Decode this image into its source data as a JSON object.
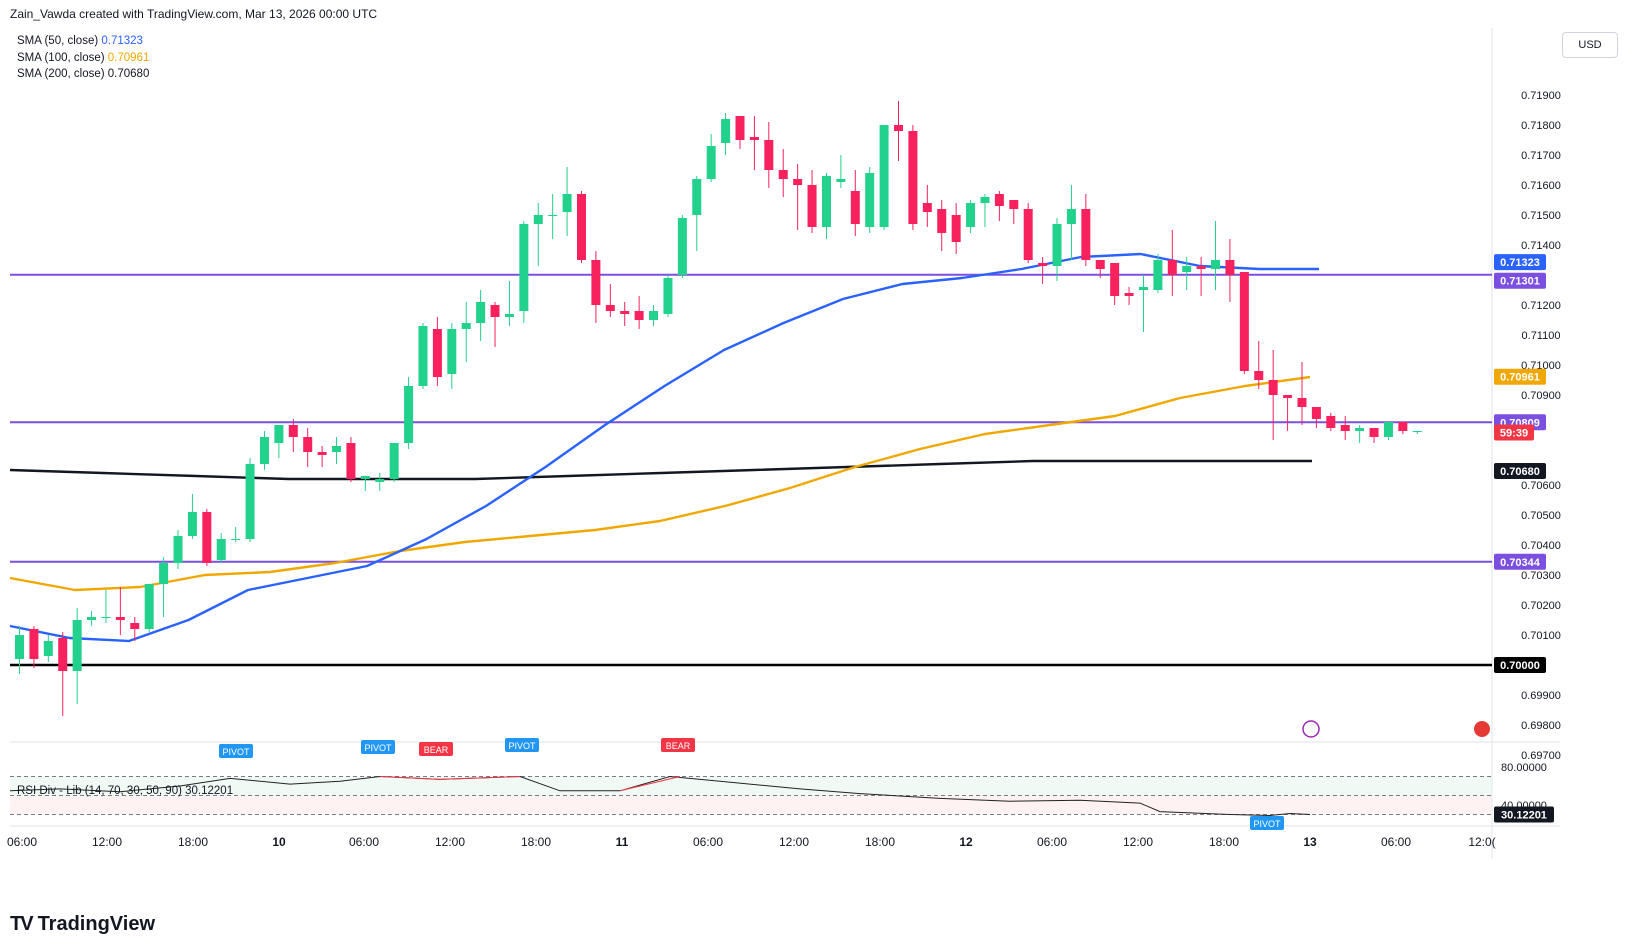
{
  "header": {
    "credit": "Zain_Vawda created with TradingView.com, Mar 13, 2026 00:00 UTC"
  },
  "legend": [
    {
      "label": "SMA (50, close)",
      "value": "0.71323",
      "color": "#2962ff"
    },
    {
      "label": "SMA (100, close)",
      "value": "0.70961",
      "color": "#f0a800"
    },
    {
      "label": "SMA (200, close)",
      "value": "0.70680",
      "color": "#131722"
    }
  ],
  "currency": "USD",
  "price_axis": {
    "ticks": [
      "0.71900",
      "0.71800",
      "0.71700",
      "0.71600",
      "0.71500",
      "0.71400",
      "0.71200",
      "0.71100",
      "0.71000",
      "0.70900",
      "0.70600",
      "0.70500",
      "0.70400",
      "0.70300",
      "0.70200",
      "0.70100",
      "0.69900",
      "0.69800",
      "0.69700"
    ],
    "badges": [
      {
        "label": "0.71323",
        "color": "#2962ff"
      },
      {
        "label": "0.71301",
        "color": "#7b4fe0"
      },
      {
        "label": "0.70961",
        "color": "#f0a800"
      },
      {
        "label": "0.70809",
        "color": "#7b4fe0"
      },
      {
        "label": "59:39",
        "color": "#f23645"
      },
      {
        "label": "0.70680",
        "color": "#131722"
      },
      {
        "label": "0.70344",
        "color": "#7b4fe0"
      },
      {
        "label": "0.70000",
        "color": "#000000"
      }
    ]
  },
  "time_axis": [
    "06:00",
    "12:00",
    "18:00",
    "10",
    "06:00",
    "12:00",
    "18:00",
    "11",
    "06:00",
    "12:00",
    "18:00",
    "12",
    "06:00",
    "12:00",
    "18:00",
    "13",
    "06:00",
    "12:0("
  ],
  "rsi": {
    "legend_label": "RSI Div - Lib (14, 70, 30, 50, 90)",
    "legend_value": "30.12201",
    "axis": [
      "80.00000",
      "40.00000",
      "30.12201"
    ],
    "markers": [
      {
        "label": "PIVOT",
        "type": "pivot-top"
      },
      {
        "label": "PIVOT",
        "type": "pivot-top"
      },
      {
        "label": "BEAR",
        "type": "bear"
      },
      {
        "label": "PIVOT",
        "type": "pivot-top"
      },
      {
        "label": "BEAR",
        "type": "bear"
      },
      {
        "label": "PIVOT",
        "type": "pivot-bottom"
      }
    ]
  },
  "branding": {
    "logo_text": "TradingView"
  },
  "chart_data": {
    "type": "candlestick",
    "symbol_quote": "USD",
    "ylim": [
      0.697,
      0.7195
    ],
    "horizontal_levels": [
      {
        "value": 0.71301,
        "color": "#7b4fe0"
      },
      {
        "value": 0.70809,
        "color": "#7b4fe0"
      },
      {
        "value": 0.70344,
        "color": "#7b4fe0"
      },
      {
        "value": 0.7,
        "color": "#000000"
      }
    ],
    "candles": [
      [
        0.7002,
        0.7013,
        0.701,
        0.6997
      ],
      [
        0.7012,
        0.7013,
        0.7002,
        0.6999
      ],
      [
        0.7003,
        0.701,
        0.7008,
        0.7001
      ],
      [
        0.7009,
        0.7011,
        0.6998,
        0.6983
      ],
      [
        0.6998,
        0.7019,
        0.7015,
        0.6987
      ],
      [
        0.7015,
        0.7018,
        0.7016,
        0.7013
      ],
      [
        0.7016,
        0.7025,
        0.7016,
        0.7014
      ],
      [
        0.7016,
        0.7026,
        0.7015,
        0.701
      ],
      [
        0.7014,
        0.7016,
        0.7012,
        0.7008
      ],
      [
        0.7012,
        0.7027,
        0.7027,
        0.7011
      ],
      [
        0.7027,
        0.7036,
        0.7034,
        0.7016
      ],
      [
        0.7034,
        0.7045,
        0.7043,
        0.7032
      ],
      [
        0.7043,
        0.7057,
        0.7051,
        0.7042
      ],
      [
        0.7051,
        0.7052,
        0.7034,
        0.7033
      ],
      [
        0.7035,
        0.7044,
        0.7042,
        0.7034
      ],
      [
        0.7042,
        0.7046,
        0.7042,
        0.7041
      ],
      [
        0.7042,
        0.7069,
        0.7067,
        0.7041
      ],
      [
        0.7067,
        0.7078,
        0.7076,
        0.7065
      ],
      [
        0.7074,
        0.708,
        0.708,
        0.7069
      ],
      [
        0.708,
        0.7082,
        0.7076,
        0.7071
      ],
      [
        0.7076,
        0.7079,
        0.7071,
        0.7066
      ],
      [
        0.7071,
        0.7073,
        0.707,
        0.7066
      ],
      [
        0.7071,
        0.7076,
        0.7073,
        0.7067
      ],
      [
        0.7074,
        0.7076,
        0.7062,
        0.7061
      ],
      [
        0.7062,
        0.7063,
        0.7063,
        0.7058
      ],
      [
        0.7061,
        0.7064,
        0.7062,
        0.7058
      ],
      [
        0.7062,
        0.7074,
        0.7074,
        0.7061
      ],
      [
        0.7074,
        0.7096,
        0.7093,
        0.7072
      ],
      [
        0.7093,
        0.7114,
        0.7113,
        0.7092
      ],
      [
        0.7112,
        0.7116,
        0.7096,
        0.7093
      ],
      [
        0.7097,
        0.7114,
        0.7112,
        0.7092
      ],
      [
        0.7112,
        0.7121,
        0.7114,
        0.7101
      ],
      [
        0.7114,
        0.7125,
        0.7121,
        0.7108
      ],
      [
        0.712,
        0.7121,
        0.7116,
        0.7106
      ],
      [
        0.7116,
        0.7128,
        0.7117,
        0.7113
      ],
      [
        0.7118,
        0.7148,
        0.7147,
        0.7114
      ],
      [
        0.7147,
        0.7154,
        0.715,
        0.7133
      ],
      [
        0.715,
        0.7157,
        0.715,
        0.7142
      ],
      [
        0.7151,
        0.7166,
        0.7157,
        0.7143
      ],
      [
        0.7157,
        0.7158,
        0.7135,
        0.7134
      ],
      [
        0.7135,
        0.7138,
        0.712,
        0.7114
      ],
      [
        0.712,
        0.7127,
        0.7118,
        0.7116
      ],
      [
        0.7118,
        0.7121,
        0.7117,
        0.7113
      ],
      [
        0.7118,
        0.7123,
        0.7115,
        0.7112
      ],
      [
        0.7115,
        0.712,
        0.7118,
        0.7113
      ],
      [
        0.7117,
        0.713,
        0.7129,
        0.7116
      ],
      [
        0.713,
        0.715,
        0.7149,
        0.7129
      ],
      [
        0.715,
        0.7163,
        0.7162,
        0.7138
      ],
      [
        0.7162,
        0.7177,
        0.7173,
        0.7161
      ],
      [
        0.7174,
        0.7184,
        0.7182,
        0.717
      ],
      [
        0.7183,
        0.7182,
        0.7175,
        0.7172
      ],
      [
        0.7176,
        0.7183,
        0.7175,
        0.7165
      ],
      [
        0.7175,
        0.7181,
        0.7165,
        0.7159
      ],
      [
        0.7165,
        0.7172,
        0.7162,
        0.7156
      ],
      [
        0.7162,
        0.7167,
        0.716,
        0.7145
      ],
      [
        0.716,
        0.7165,
        0.7146,
        0.7144
      ],
      [
        0.7146,
        0.7164,
        0.7163,
        0.7142
      ],
      [
        0.7161,
        0.717,
        0.7162,
        0.7159
      ],
      [
        0.7158,
        0.7165,
        0.7147,
        0.7143
      ],
      [
        0.7146,
        0.7166,
        0.7164,
        0.7144
      ],
      [
        0.7146,
        0.718,
        0.718,
        0.7145
      ],
      [
        0.718,
        0.7188,
        0.7178,
        0.7168
      ],
      [
        0.7178,
        0.718,
        0.7147,
        0.7145
      ],
      [
        0.7154,
        0.716,
        0.7151,
        0.7146
      ],
      [
        0.7152,
        0.7155,
        0.7144,
        0.7138
      ],
      [
        0.715,
        0.7154,
        0.7141,
        0.7137
      ],
      [
        0.7146,
        0.7155,
        0.7154,
        0.7144
      ],
      [
        0.7154,
        0.7157,
        0.7156,
        0.7146
      ],
      [
        0.7157,
        0.7158,
        0.7153,
        0.7148
      ],
      [
        0.7155,
        0.7154,
        0.7152,
        0.7147
      ],
      [
        0.7152,
        0.7154,
        0.7135,
        0.7134
      ],
      [
        0.7134,
        0.7136,
        0.7133,
        0.7127
      ],
      [
        0.7133,
        0.7149,
        0.7147,
        0.7128
      ],
      [
        0.7147,
        0.716,
        0.7152,
        0.7135
      ],
      [
        0.7152,
        0.7157,
        0.7135,
        0.7133
      ],
      [
        0.7135,
        0.7134,
        0.7132,
        0.7129
      ],
      [
        0.7134,
        0.7134,
        0.7123,
        0.712
      ],
      [
        0.7124,
        0.7126,
        0.7123,
        0.712
      ],
      [
        0.7125,
        0.713,
        0.7126,
        0.7111
      ],
      [
        0.7125,
        0.7137,
        0.7135,
        0.7124
      ],
      [
        0.7135,
        0.7145,
        0.713,
        0.7123
      ],
      [
        0.7131,
        0.7136,
        0.7133,
        0.7125
      ],
      [
        0.7133,
        0.7136,
        0.7132,
        0.7123
      ],
      [
        0.7132,
        0.7148,
        0.7135,
        0.7125
      ],
      [
        0.7135,
        0.7142,
        0.713,
        0.7121
      ],
      [
        0.7131,
        0.713,
        0.7098,
        0.7097
      ],
      [
        0.7098,
        0.7108,
        0.7095,
        0.7092
      ],
      [
        0.7095,
        0.7105,
        0.709,
        0.7075
      ],
      [
        0.709,
        0.709,
        0.7089,
        0.7078
      ],
      [
        0.7089,
        0.7101,
        0.7086,
        0.708
      ],
      [
        0.7086,
        0.7086,
        0.7082,
        0.7079
      ],
      [
        0.7083,
        0.7084,
        0.7079,
        0.7078
      ],
      [
        0.708,
        0.7083,
        0.7078,
        0.7075
      ],
      [
        0.7078,
        0.708,
        0.7079,
        0.7074
      ],
      [
        0.7079,
        0.7077,
        0.7076,
        0.7074
      ],
      [
        0.7076,
        0.7081,
        0.7081,
        0.7075
      ],
      [
        0.7081,
        0.7081,
        0.7078,
        0.7077
      ],
      [
        0.7078,
        0.7078,
        0.7078,
        0.7077
      ]
    ],
    "sma50": [
      0.7013,
      0.7009,
      0.7008,
      0.7015,
      0.7025,
      0.7029,
      0.7033,
      0.7042,
      0.7053,
      0.7066,
      0.708,
      0.7093,
      0.7105,
      0.7114,
      0.7122,
      0.7127,
      0.7129,
      0.7132,
      0.7136,
      0.7137,
      0.7133,
      0.7132,
      0.7132
    ],
    "sma100": [
      0.7029,
      0.7025,
      0.7026,
      0.703,
      0.7031,
      0.7034,
      0.7038,
      0.7041,
      0.7043,
      0.7045,
      0.7048,
      0.7053,
      0.7059,
      0.7066,
      0.7072,
      0.7077,
      0.708,
      0.7083,
      0.7089,
      0.7093,
      0.7096
    ],
    "sma200": [
      0.7065,
      0.7064,
      0.7063,
      0.7062,
      0.7062,
      0.7062,
      0.7063,
      0.7064,
      0.7065,
      0.7066,
      0.7067,
      0.7068,
      0.7068,
      0.7068,
      0.7068
    ]
  }
}
